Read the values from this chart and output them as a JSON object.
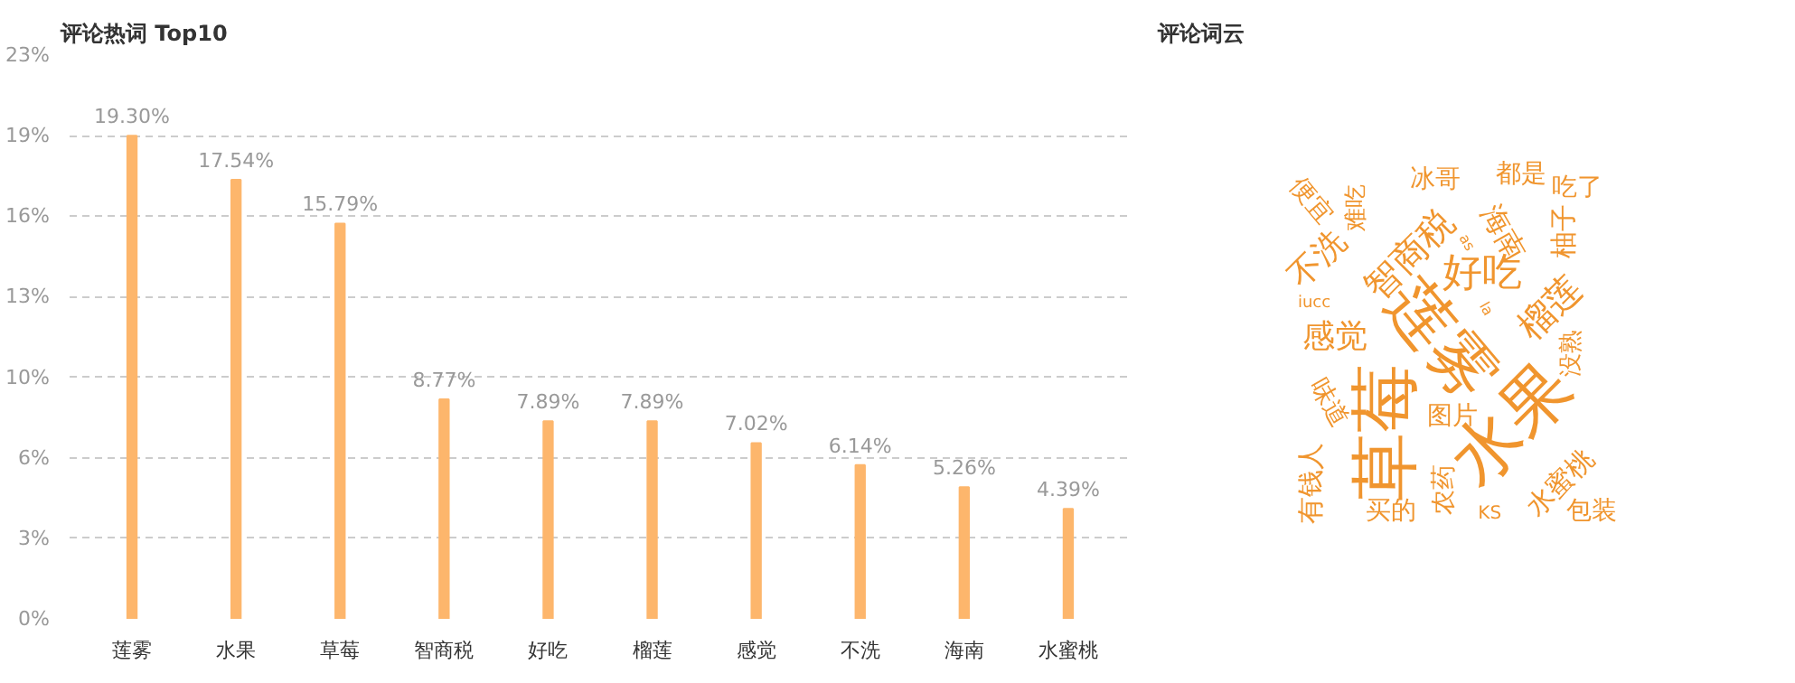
{
  "chart_data": [
    {
      "type": "bar",
      "title": "评论热词 Top10",
      "categories": [
        "莲雾",
        "水果",
        "草莓",
        "智商税",
        "好吃",
        "榴莲",
        "感觉",
        "不洗",
        "海南",
        "水蜜桃"
      ],
      "values": [
        19.3,
        17.54,
        15.79,
        8.77,
        7.89,
        7.89,
        7.02,
        6.14,
        5.26,
        4.39
      ],
      "value_labels": [
        "19.30%",
        "17.54%",
        "15.79%",
        "8.77%",
        "7.89%",
        "7.89%",
        "7.02%",
        "6.14%",
        "5.26%",
        "4.39%"
      ],
      "color": "#fdb66c",
      "ylim": [
        0,
        22.517
      ],
      "yticks": [
        {
          "value": 0,
          "label": "0%"
        },
        {
          "value": 3.217,
          "label": "3%"
        },
        {
          "value": 6.433,
          "label": "6%"
        },
        {
          "value": 9.65,
          "label": "10%"
        },
        {
          "value": 12.867,
          "label": "13%"
        },
        {
          "value": 16.083,
          "label": "16%"
        },
        {
          "value": 19.3,
          "label": "19%"
        },
        {
          "value": 22.517,
          "label": "23%"
        }
      ],
      "grid": "y"
    },
    {
      "type": "other",
      "title": "评论词云",
      "color": "#f0952e",
      "annotations": [
        "便宜",
        "难吃",
        "冰哥",
        "都是",
        "吃了",
        "智商税",
        "海南",
        "柚子",
        "as",
        "不洗",
        "好吃",
        "iucc",
        "榴莲",
        "la",
        "感觉",
        "莲雾",
        "没熟",
        "味道",
        "图片",
        "草莓",
        "水果",
        "有钱人",
        "买的",
        "农药",
        "KS",
        "水蜜桃",
        "包装"
      ]
    }
  ]
}
